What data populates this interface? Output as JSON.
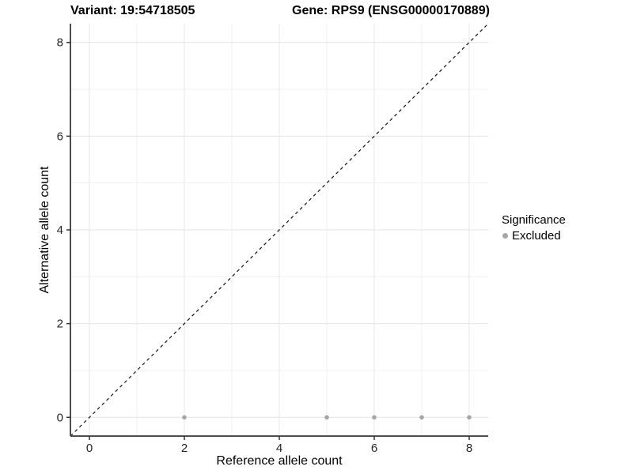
{
  "titles": {
    "variant": "Variant: 19:54718505",
    "gene": "Gene: RPS9 (ENSG00000170889)"
  },
  "legend": {
    "title": "Significance",
    "items": [
      {
        "label": "Excluded",
        "color": "#a6a6a6"
      }
    ]
  },
  "chart_data": {
    "type": "scatter",
    "title": "Variant: 19:54718505 / Gene: RPS9 (ENSG00000170889)",
    "xlabel": "Reference allele count",
    "ylabel": "Alternative allele count",
    "xlim": [
      -0.4,
      8.4
    ],
    "ylim": [
      -0.4,
      8.4
    ],
    "x_ticks": [
      0,
      2,
      4,
      6,
      8
    ],
    "y_ticks": [
      0,
      2,
      4,
      6,
      8
    ],
    "x_tick_labels": [
      "0",
      "2",
      "4",
      "6",
      "8"
    ],
    "y_tick_labels": [
      "0",
      "2",
      "4",
      "6",
      "8"
    ],
    "x_minor_ticks": [
      1,
      3,
      5,
      7
    ],
    "y_minor_ticks": [
      1,
      3,
      5,
      7
    ],
    "grid": "major+minor",
    "legend_position": "right",
    "series": [
      {
        "name": "Excluded",
        "color": "#a6a6a6",
        "points": [
          {
            "x": 2,
            "y": 0
          },
          {
            "x": 5,
            "y": 0
          },
          {
            "x": 6,
            "y": 0
          },
          {
            "x": 7,
            "y": 0
          },
          {
            "x": 8,
            "y": 0
          }
        ]
      }
    ],
    "reference_line": {
      "kind": "identity y=x",
      "style": "dashed",
      "color": "#111111",
      "from": {
        "x": -0.4,
        "y": -0.4
      },
      "to": {
        "x": 8.4,
        "y": 8.4
      }
    },
    "colors": {
      "grid_major": "#e4e4e4",
      "grid_minor": "#f1f1f1",
      "axis_line": "#4d4d4d",
      "tick_mark": "#333333",
      "tick_label": "#262626",
      "point": "#a6a6a6",
      "background": "#ffffff"
    }
  }
}
